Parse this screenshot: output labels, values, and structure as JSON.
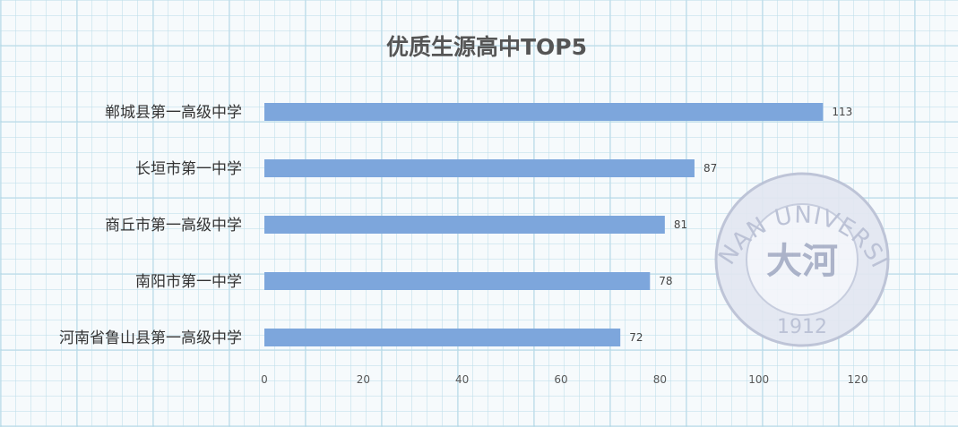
{
  "chart_data": {
    "type": "bar",
    "orientation": "horizontal",
    "title": "优质生源高中TOP5",
    "categories": [
      "郸城县第一高级中学",
      "长垣市第一中学",
      "商丘市第一高级中学",
      "南阳市第一中学",
      "河南省鲁山县第一高级中学"
    ],
    "values": [
      113,
      87,
      81,
      78,
      72
    ],
    "xlim": [
      0,
      120
    ],
    "xticks": [
      0,
      20,
      40,
      60,
      80,
      100,
      120
    ],
    "grid": false,
    "legend": "none",
    "bar_color": "#7da6dc"
  },
  "watermark": {
    "icon": "henan-university-seal-icon",
    "text_top": "HENAN UNIVERSITY",
    "text_center": "大河",
    "year": "1912",
    "color": "#b6bdd2"
  }
}
